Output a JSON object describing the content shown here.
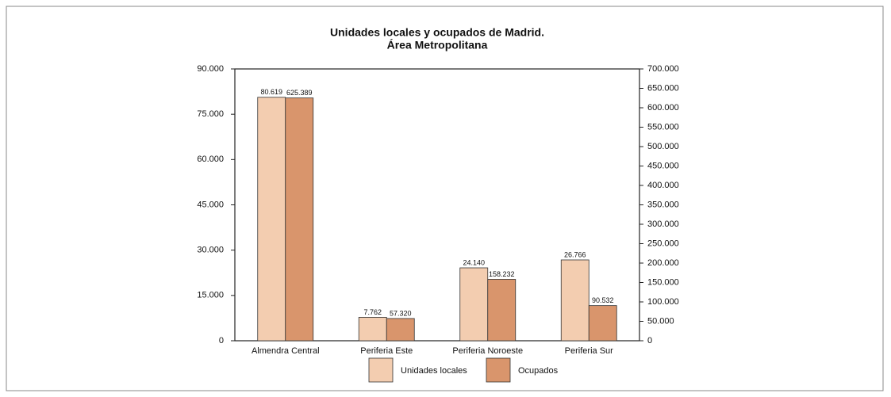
{
  "chart_data": {
    "type": "bar",
    "title": "Unidades locales y ocupados de Madrid.",
    "subtitle": "Área Metropolitana",
    "categories": [
      "Almendra Central",
      "Periferia Este",
      "Periferia Noroeste",
      "Periferia Sur"
    ],
    "series": [
      {
        "name": "Unidades locales",
        "color": "#f3cdb0",
        "values": [
          80619,
          7762,
          24140,
          26766
        ],
        "value_labels": [
          "80.619",
          "7.762",
          "24.140",
          "26.766"
        ]
      },
      {
        "name": "Ocupados",
        "color": "#d9956c",
        "axis": "y2",
        "values": [
          625389,
          57320,
          158232,
          90532
        ],
        "value_labels": [
          "625.389",
          "57.320",
          "158.232",
          "90.532"
        ]
      }
    ],
    "ylim": [
      0,
      90000
    ],
    "yticks": [
      0,
      {
        "value": 15000,
        "label": "15.000"
      },
      {
        "value": 30000,
        "label": "30.000"
      },
      {
        "value": 45000,
        "label": "45.000"
      },
      {
        "value": 60000,
        "label": "60.000"
      },
      {
        "value": 75000,
        "label": "75.000"
      },
      {
        "value": 90000,
        "label": "90.000"
      }
    ],
    "y2lim": [
      0,
      700000
    ],
    "y2ticks": [
      0,
      {
        "value": 50000,
        "label": "50.000"
      },
      {
        "value": 100000,
        "label": "100.000"
      },
      {
        "value": 150000,
        "label": "150.000"
      },
      {
        "value": 200000,
        "label": "200.000"
      },
      {
        "value": 250000,
        "label": "250.000"
      },
      {
        "value": 300000,
        "label": "300.000"
      },
      {
        "value": 350000,
        "label": "350.000"
      },
      {
        "value": 400000,
        "label": "400.000"
      },
      {
        "value": 450000,
        "label": "450.000"
      },
      {
        "value": 500000,
        "label": "500.000"
      },
      {
        "value": 550000,
        "label": "550.000"
      },
      {
        "value": 600000,
        "label": "600.000"
      },
      {
        "value": 650000,
        "label": "650.000"
      },
      {
        "value": 700000,
        "label": "700.000"
      }
    ],
    "legend": "bottom"
  }
}
